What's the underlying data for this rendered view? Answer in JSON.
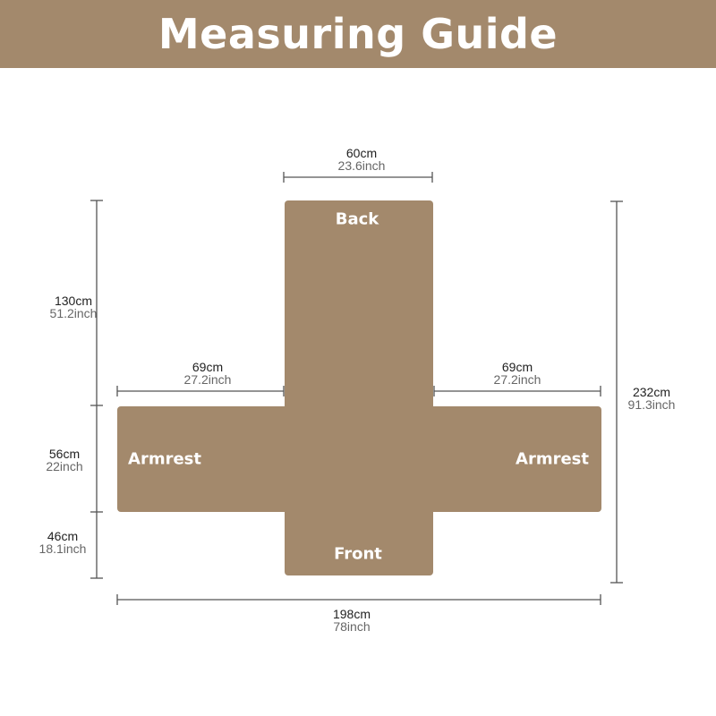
{
  "title": "Measuring Guide",
  "colors": {
    "brand": "#a3896c",
    "line": "#555555"
  },
  "parts": {
    "back": "Back",
    "front": "Front",
    "armrest_left": "Armrest",
    "armrest_right": "Armrest"
  },
  "dimensions": {
    "back_width": {
      "cm": "60cm",
      "inch": "23.6inch"
    },
    "back_length": {
      "cm": "130cm",
      "inch": "51.2inch"
    },
    "armrest_left_length": {
      "cm": "69cm",
      "inch": "27.2inch"
    },
    "armrest_right_length": {
      "cm": "69cm",
      "inch": "27.2inch"
    },
    "armrest_width": {
      "cm": "56cm",
      "inch": "22inch"
    },
    "front_length": {
      "cm": "46cm",
      "inch": "18.1inch"
    },
    "total_length": {
      "cm": "232cm",
      "inch": "91.3inch"
    },
    "total_width": {
      "cm": "198cm",
      "inch": "78inch"
    }
  }
}
